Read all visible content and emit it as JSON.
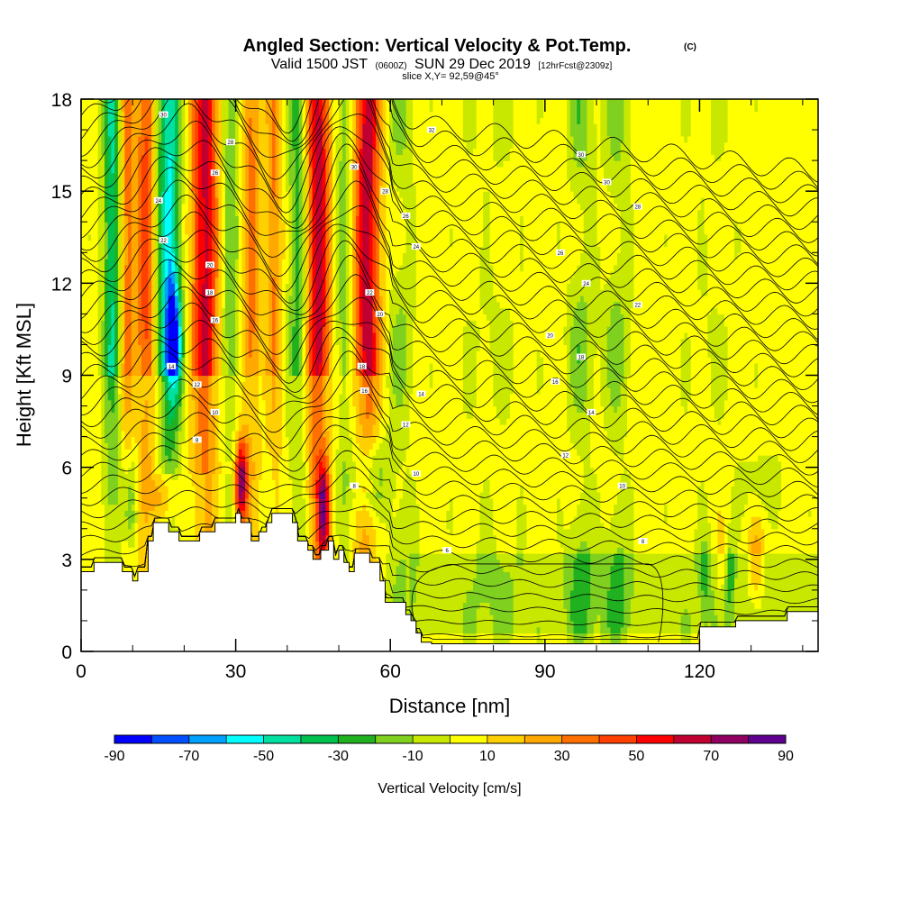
{
  "chart_data": {
    "type": "heatmap",
    "title": "Angled Section: Vertical Velocity & Pot.Temp.",
    "title_unit": "(C)",
    "subtitle_parts": [
      "Valid 1500 JST",
      "(0600Z)",
      "SUN 29 Dec 2019",
      "[12hrFcst@2309z]"
    ],
    "slice_label": "slice X,Y= 92,59@45°",
    "xlabel": "Distance [nm]",
    "ylabel": "Height [Kft MSL]",
    "xlim": [
      0,
      143
    ],
    "ylim": [
      0,
      18
    ],
    "x_ticks": [
      0,
      30,
      60,
      90,
      120
    ],
    "y_ticks": [
      0,
      3,
      6,
      9,
      12,
      15,
      18
    ],
    "colorbar": {
      "label": "Vertical Velocity [cm/s]",
      "range": [
        -90,
        90
      ],
      "tick_labels": [
        -90,
        -70,
        -50,
        -30,
        -10,
        10,
        30,
        50,
        70,
        90
      ],
      "colors": [
        "#0000ff",
        "#0050ff",
        "#00a0ff",
        "#00ffff",
        "#00e0a0",
        "#00c050",
        "#20b020",
        "#80d020",
        "#c8e800",
        "#ffff00",
        "#ffd000",
        "#ffa800",
        "#ff7000",
        "#ff4000",
        "#ff0000",
        "#c00030",
        "#900060",
        "#600090"
      ]
    },
    "features": [
      {
        "x": 6,
        "w": 1.6,
        "v": -45
      },
      {
        "x": 9,
        "w": 1.3,
        "v": 32
      },
      {
        "x": 12.5,
        "w": 1.8,
        "v": 40
      },
      {
        "x": 17,
        "w": 2.2,
        "v": -55
      },
      {
        "x": 24,
        "w": 2.6,
        "v": 58
      },
      {
        "x": 29,
        "w": 1.8,
        "v": -22
      },
      {
        "x": 33,
        "w": 1.8,
        "v": 30
      },
      {
        "x": 37.5,
        "w": 1.5,
        "v": 28
      },
      {
        "x": 42,
        "w": 1.8,
        "v": -28
      },
      {
        "x": 46,
        "w": 2.2,
        "v": 62
      },
      {
        "x": 51,
        "w": 1.5,
        "v": -20
      },
      {
        "x": 55.5,
        "w": 2.4,
        "v": 62
      },
      {
        "x": 62,
        "w": 2.5,
        "v": -18
      },
      {
        "x": 80,
        "w": 6,
        "v": -6
      },
      {
        "x": 97,
        "w": 2.5,
        "v": -22
      },
      {
        "x": 104,
        "w": 2.5,
        "v": -20
      },
      {
        "x": 122,
        "w": 5,
        "v": -5
      }
    ],
    "blobs": [
      {
        "x": 31,
        "y": 5.5,
        "rx": 1.2,
        "ry": 1.4,
        "v": 78
      },
      {
        "x": 16,
        "y": 5.0,
        "rx": 2.0,
        "ry": 1.0,
        "v": 32
      },
      {
        "x": 9.5,
        "y": 5.0,
        "rx": 1.5,
        "ry": 1.6,
        "v": -28
      },
      {
        "x": 56,
        "y": 5.8,
        "rx": 3.5,
        "ry": 1.3,
        "v": -32
      },
      {
        "x": 47,
        "y": 4.5,
        "rx": 1.2,
        "ry": 1.5,
        "v": 62
      },
      {
        "x": 18,
        "y": 10.2,
        "rx": 1.6,
        "ry": 2.0,
        "v": -60
      },
      {
        "x": 131,
        "y": 2.8,
        "rx": 1.6,
        "ry": 1.4,
        "v": 22
      },
      {
        "x": 124,
        "y": 2.8,
        "rx": 1.0,
        "ry": 1.6,
        "v": 14
      },
      {
        "x": 126,
        "y": 2.5,
        "rx": 0.7,
        "ry": 1.2,
        "v": -22
      },
      {
        "x": 121,
        "y": 2.6,
        "rx": 0.7,
        "ry": 1.2,
        "v": -20
      },
      {
        "x": 132,
        "y": 5.5,
        "rx": 4.0,
        "ry": 1.0,
        "v": -10
      }
    ],
    "terrain": [
      [
        0,
        2.6
      ],
      [
        2.5,
        2.6
      ],
      [
        2.5,
        2.9
      ],
      [
        8,
        2.9
      ],
      [
        8,
        2.6
      ],
      [
        10,
        2.6
      ],
      [
        10,
        2.3
      ],
      [
        11,
        2.3
      ],
      [
        11,
        2.6
      ],
      [
        13,
        2.6
      ],
      [
        13,
        3.6
      ],
      [
        14,
        3.6
      ],
      [
        14,
        4.2
      ],
      [
        17,
        4.2
      ],
      [
        17,
        3.9
      ],
      [
        19,
        3.9
      ],
      [
        19,
        3.6
      ],
      [
        23,
        3.6
      ],
      [
        23,
        3.9
      ],
      [
        26,
        3.9
      ],
      [
        26,
        4.2
      ],
      [
        30,
        4.2
      ],
      [
        30,
        4.5
      ],
      [
        31,
        4.5
      ],
      [
        31,
        4.2
      ],
      [
        33,
        4.2
      ],
      [
        33,
        3.6
      ],
      [
        34.5,
        3.6
      ],
      [
        34.5,
        3.9
      ],
      [
        36,
        3.9
      ],
      [
        36,
        4.2
      ],
      [
        37,
        4.2
      ],
      [
        37,
        4.5
      ],
      [
        41,
        4.5
      ],
      [
        41,
        4.2
      ],
      [
        42,
        4.2
      ],
      [
        42,
        3.6
      ],
      [
        44,
        3.6
      ],
      [
        44,
        3.3
      ],
      [
        45,
        3.3
      ],
      [
        45,
        3.0
      ],
      [
        46.5,
        3.0
      ],
      [
        46.5,
        3.3
      ],
      [
        48,
        3.3
      ],
      [
        48,
        3.6
      ],
      [
        49,
        3.6
      ],
      [
        49,
        3.0
      ],
      [
        50,
        3.0
      ],
      [
        50,
        3.3
      ],
      [
        51,
        3.3
      ],
      [
        51,
        2.9
      ],
      [
        52,
        2.9
      ],
      [
        52,
        2.6
      ],
      [
        53,
        2.6
      ],
      [
        53,
        3.2
      ],
      [
        56,
        3.2
      ],
      [
        56,
        2.9
      ],
      [
        58,
        2.9
      ],
      [
        58,
        2.3
      ],
      [
        59,
        2.3
      ],
      [
        59,
        1.6
      ],
      [
        63,
        1.6
      ],
      [
        63,
        1.2
      ],
      [
        64,
        1.2
      ],
      [
        64,
        1.0
      ],
      [
        65,
        1.0
      ],
      [
        65,
        0.6
      ],
      [
        66,
        0.6
      ],
      [
        66,
        0.3
      ],
      [
        68,
        0.3
      ],
      [
        68,
        0.25
      ],
      [
        120,
        0.25
      ],
      [
        120,
        0.8
      ],
      [
        127,
        0.8
      ],
      [
        127,
        1.0
      ],
      [
        137,
        1.0
      ],
      [
        137,
        1.3
      ],
      [
        143,
        1.3
      ]
    ],
    "theta_levels": 40,
    "contour_labels": [
      {
        "x": 16,
        "y": 17.5,
        "text": "30"
      },
      {
        "x": 29,
        "y": 16.6,
        "text": "28"
      },
      {
        "x": 26,
        "y": 15.6,
        "text": "26"
      },
      {
        "x": 15,
        "y": 14.7,
        "text": "24"
      },
      {
        "x": 16,
        "y": 13.4,
        "text": "22"
      },
      {
        "x": 25,
        "y": 12.6,
        "text": "20"
      },
      {
        "x": 25,
        "y": 11.7,
        "text": "18"
      },
      {
        "x": 26,
        "y": 10.8,
        "text": "16"
      },
      {
        "x": 17.5,
        "y": 9.3,
        "text": "14"
      },
      {
        "x": 22.5,
        "y": 8.7,
        "text": "12"
      },
      {
        "x": 26,
        "y": 7.8,
        "text": "10"
      },
      {
        "x": 22.5,
        "y": 6.9,
        "text": "8"
      },
      {
        "x": 53,
        "y": 15.8,
        "text": "30"
      },
      {
        "x": 59,
        "y": 15.0,
        "text": "28"
      },
      {
        "x": 63,
        "y": 14.2,
        "text": "26"
      },
      {
        "x": 65,
        "y": 13.2,
        "text": "24"
      },
      {
        "x": 56,
        "y": 11.7,
        "text": "22"
      },
      {
        "x": 58,
        "y": 11.0,
        "text": "20"
      },
      {
        "x": 54.5,
        "y": 9.3,
        "text": "18"
      },
      {
        "x": 55,
        "y": 8.5,
        "text": "16"
      },
      {
        "x": 66,
        "y": 8.4,
        "text": "14"
      },
      {
        "x": 63,
        "y": 7.4,
        "text": "12"
      },
      {
        "x": 65,
        "y": 5.8,
        "text": "10"
      },
      {
        "x": 53,
        "y": 5.4,
        "text": "8"
      },
      {
        "x": 71,
        "y": 3.3,
        "text": "6"
      },
      {
        "x": 68,
        "y": 17.0,
        "text": "32"
      },
      {
        "x": 97,
        "y": 16.2,
        "text": "30"
      },
      {
        "x": 102,
        "y": 15.3,
        "text": "30"
      },
      {
        "x": 108,
        "y": 14.5,
        "text": "28"
      },
      {
        "x": 93,
        "y": 13.0,
        "text": "26"
      },
      {
        "x": 98,
        "y": 12.0,
        "text": "24"
      },
      {
        "x": 108,
        "y": 11.3,
        "text": "22"
      },
      {
        "x": 91,
        "y": 10.3,
        "text": "20"
      },
      {
        "x": 97,
        "y": 9.6,
        "text": "18"
      },
      {
        "x": 92,
        "y": 8.8,
        "text": "16"
      },
      {
        "x": 99,
        "y": 7.8,
        "text": "14"
      },
      {
        "x": 94,
        "y": 6.4,
        "text": "12"
      },
      {
        "x": 105,
        "y": 5.4,
        "text": "10"
      },
      {
        "x": 109,
        "y": 3.6,
        "text": "8"
      }
    ]
  }
}
